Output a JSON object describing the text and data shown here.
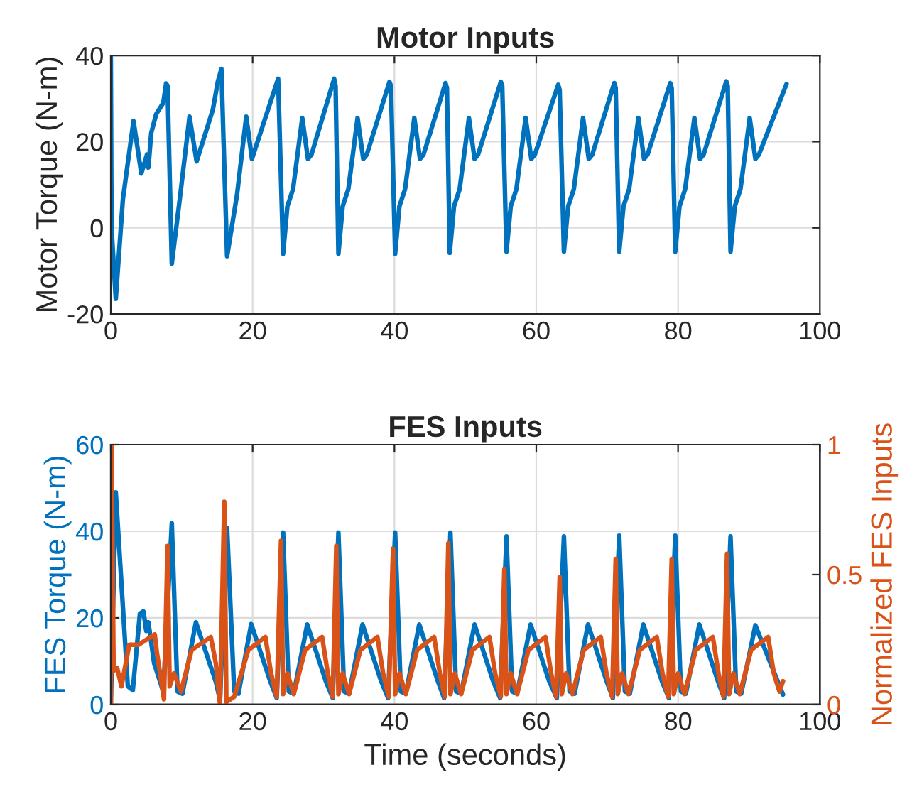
{
  "chart_data": [
    {
      "type": "line",
      "title": "Motor Inputs",
      "ylabel": "Motor Torque (N-m)",
      "xlim": [
        0,
        100
      ],
      "xticks": [
        0,
        20,
        40,
        60,
        80,
        100
      ],
      "ylim": [
        -20,
        40
      ],
      "yticks": [
        -20,
        0,
        20,
        40
      ],
      "grid": true,
      "line_style": "solid",
      "series": [
        {
          "color": "#0072bd",
          "x": [
            0,
            0.1,
            0.7,
            1.7,
            3.2,
            4.3,
            5.1,
            5.3,
            5.7,
            6.4,
            7.4,
            7.8,
            8.0,
            8.6,
            9.8,
            11.1,
            12.1,
            14.4,
            15.1,
            15.6,
            15.9,
            16.4,
            17.8,
            19.1,
            19.9,
            23.6,
            24.3,
            24.9,
            25.7,
            27.0,
            27.8,
            28.3,
            31.5,
            31.7,
            32.1,
            32.7,
            33.5,
            34.8,
            35.6,
            36.1,
            39.3,
            39.5,
            40.1,
            40.7,
            41.5,
            42.8,
            43.6,
            44.1,
            47.2,
            47.4,
            47.8,
            48.4,
            49.2,
            50.5,
            51.3,
            51.8,
            55.0,
            55.2,
            55.8,
            56.4,
            57.2,
            58.5,
            59.3,
            59.8,
            63.1,
            63.3,
            63.9,
            64.5,
            65.3,
            66.6,
            67.4,
            67.9,
            71.0,
            71.2,
            71.7,
            72.3,
            73.1,
            74.4,
            75.2,
            75.7,
            78.9,
            79.1,
            79.6,
            80.2,
            81.0,
            82.3,
            83.1,
            83.6,
            86.8,
            87.0,
            87.4,
            88.0,
            88.8,
            90.1,
            90.9,
            91.4,
            95.3
          ],
          "values": [
            39.6,
            0,
            -16.5,
            6.6,
            24.8,
            12.6,
            17,
            14,
            22,
            26.4,
            29,
            33.5,
            33,
            -8.3,
            7.7,
            25.8,
            15.4,
            27.5,
            34,
            36.9,
            20,
            -6.6,
            7.7,
            25.8,
            16,
            34.6,
            -6,
            5,
            9,
            25.5,
            16,
            17,
            34.6,
            33,
            -6,
            5,
            9,
            25.5,
            16,
            17,
            33.9,
            33,
            -6,
            5,
            9,
            25.5,
            16,
            17,
            33.6,
            32.5,
            -5.8,
            5,
            9,
            25.5,
            16,
            17,
            33.9,
            33,
            -5.5,
            5,
            9,
            25.5,
            16,
            17,
            33.2,
            32,
            -5.5,
            5,
            9,
            25.5,
            16,
            17,
            33.6,
            32.5,
            -5.5,
            5,
            9,
            25.5,
            16,
            17,
            33.6,
            32.5,
            -5.5,
            5,
            9,
            25.5,
            16,
            17,
            34,
            33,
            -5.5,
            5,
            9,
            25.5,
            16,
            17,
            33.4
          ]
        }
      ]
    },
    {
      "type": "line",
      "title": "FES Inputs",
      "xlabel": "Time (seconds)",
      "ylabel": "FES Torque (N-m)",
      "y2label": "Normalized FES Inputs",
      "xlim": [
        0,
        100
      ],
      "xticks": [
        0,
        20,
        40,
        60,
        80,
        100
      ],
      "ylim": [
        0,
        60
      ],
      "yticks": [
        0,
        20,
        40,
        60
      ],
      "y2lim": [
        0,
        1
      ],
      "y2ticks": [
        0,
        0.5,
        1
      ],
      "grid": true,
      "line_style": "solid",
      "series": [
        {
          "color": "#0072bd",
          "x": [
            0,
            0.7,
            2.4,
            3.1,
            4.1,
            4.6,
            5.0,
            5.3,
            6.1,
            7.4,
            8.6,
            9.4,
            10.1,
            12.0,
            14.8,
            15.4,
            16.4,
            17.4,
            18.0,
            19.8,
            22.5,
            23.4,
            24.3,
            25.1,
            25.8,
            27.7,
            30.3,
            31.3,
            32.1,
            32.9,
            33.6,
            35.5,
            38.1,
            39.1,
            40.1,
            40.9,
            41.6,
            43.5,
            46.1,
            47.0,
            47.9,
            48.7,
            49.4,
            51.3,
            53.9,
            54.9,
            55.8,
            56.6,
            57.3,
            59.2,
            61.8,
            62.9,
            63.9,
            64.7,
            65.4,
            67.3,
            69.9,
            70.8,
            71.7,
            72.5,
            73.2,
            75.1,
            77.7,
            78.7,
            79.6,
            80.4,
            81.1,
            83.0,
            85.6,
            86.5,
            87.4,
            88.2,
            88.9,
            90.9,
            94.8
          ],
          "values": [
            0,
            49,
            4.2,
            3.3,
            21,
            21.5,
            17,
            19,
            9.6,
            3,
            41.8,
            3,
            2.5,
            19,
            5.3,
            1,
            40.8,
            3,
            2.5,
            18.6,
            5.3,
            1.5,
            39.7,
            3,
            2.5,
            18.5,
            5.5,
            1.5,
            39.7,
            3,
            2.5,
            18.5,
            5.5,
            1.5,
            39.7,
            3,
            2.5,
            18.5,
            5.5,
            1.5,
            39.7,
            3,
            2.5,
            18.5,
            5.5,
            1.5,
            38.8,
            3,
            2.5,
            18.5,
            5.5,
            1.5,
            38.8,
            3,
            2.5,
            18.5,
            5.5,
            1.5,
            39,
            3,
            2.5,
            18.5,
            5.5,
            1.5,
            39,
            3,
            2.5,
            18.5,
            5.5,
            1.5,
            38.8,
            3,
            2.5,
            18.3,
            2.3
          ]
        },
        {
          "color": "#d95319",
          "axis": "y2",
          "x": [
            0,
            0.1,
            0.4,
            0.9,
            1.5,
            2.6,
            3.9,
            6.2,
            6.5,
            7.5,
            8.0,
            8.3,
            8.9,
            9.9,
            11.4,
            14.1,
            14.8,
            15.4,
            16.0,
            16.3,
            17.4,
            19.4,
            21.8,
            22.6,
            23.4,
            24.0,
            24.3,
            24.9,
            25.8,
            27.4,
            29.8,
            30.6,
            31.3,
            31.8,
            32.1,
            32.7,
            33.6,
            35.2,
            37.6,
            38.4,
            39.2,
            39.8,
            40.1,
            40.7,
            41.6,
            43.2,
            45.6,
            46.4,
            47.1,
            47.6,
            47.9,
            48.5,
            49.4,
            51.0,
            53.4,
            54.2,
            55.0,
            55.5,
            55.8,
            56.4,
            57.3,
            58.9,
            61.3,
            62.1,
            62.8,
            63.3,
            63.6,
            64.2,
            65.1,
            66.7,
            69.1,
            69.9,
            70.7,
            71.2,
            71.5,
            72.1,
            73.0,
            74.6,
            77.0,
            77.8,
            78.6,
            79.1,
            79.4,
            80.0,
            80.9,
            82.5,
            84.9,
            85.7,
            86.4,
            86.9,
            87.2,
            87.8,
            88.7,
            90.3,
            92.7,
            93.5,
            94.3,
            94.8
          ],
          "values": [
            0,
            1.0,
            0.13,
            0.14,
            0.07,
            0.23,
            0.23,
            0.27,
            0.2,
            0.02,
            0.61,
            0.07,
            0.12,
            0.05,
            0.21,
            0.26,
            0.16,
            0,
            0.78,
            0.01,
            0.03,
            0.21,
            0.26,
            0.12,
            0.03,
            0.63,
            0.04,
            0.12,
            0.04,
            0.21,
            0.26,
            0.12,
            0.03,
            0.61,
            0.04,
            0.12,
            0.04,
            0.21,
            0.26,
            0.12,
            0.03,
            0.6,
            0.04,
            0.12,
            0.04,
            0.21,
            0.26,
            0.12,
            0.03,
            0.62,
            0.04,
            0.12,
            0.04,
            0.21,
            0.26,
            0.12,
            0.03,
            0.52,
            0.04,
            0.12,
            0.04,
            0.21,
            0.26,
            0.12,
            0.03,
            0.49,
            0.04,
            0.12,
            0.04,
            0.21,
            0.26,
            0.12,
            0.03,
            0.56,
            0.04,
            0.12,
            0.04,
            0.21,
            0.26,
            0.12,
            0.03,
            0.56,
            0.04,
            0.12,
            0.04,
            0.21,
            0.26,
            0.12,
            0.03,
            0.58,
            0.04,
            0.12,
            0.04,
            0.21,
            0.26,
            0.12,
            0.05,
            0.09
          ]
        }
      ]
    }
  ]
}
